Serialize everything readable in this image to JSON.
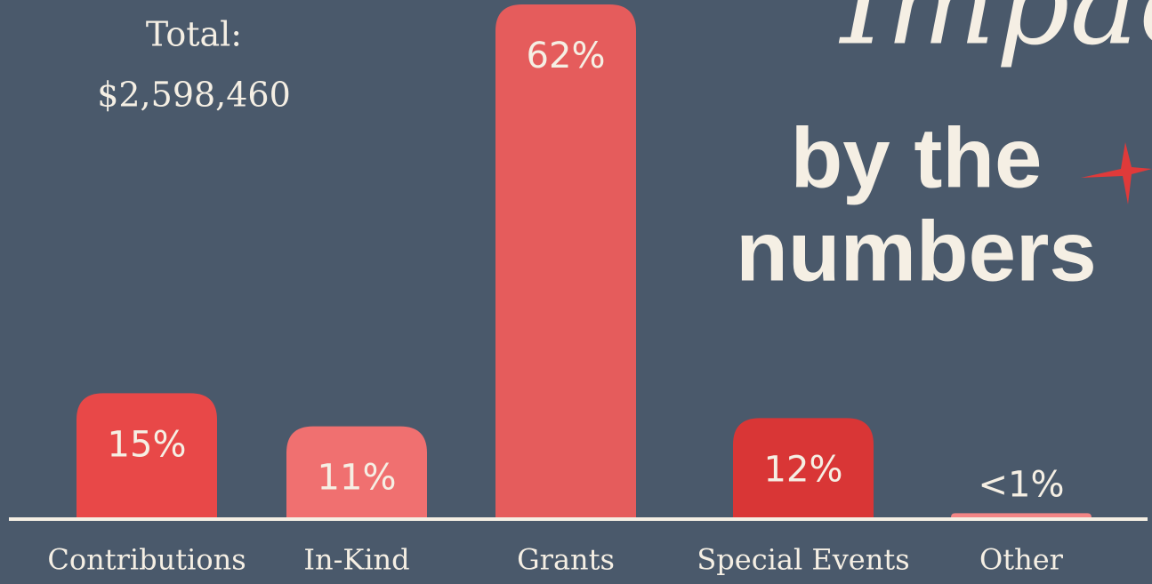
{
  "chart_data": {
    "type": "bar",
    "title": [
      "Impact",
      "by the",
      "numbers"
    ],
    "annotations": [
      "Total:",
      "$2,598,460"
    ],
    "categories": [
      "Contributions",
      "In-Kind",
      "Grants",
      "Special Events",
      "Other"
    ],
    "values": [
      15,
      11,
      62,
      12,
      0.5
    ],
    "value_labels": [
      "15%",
      "11%",
      "62%",
      "12%",
      "<1%"
    ],
    "colors": [
      "#e84848",
      "#f07070",
      "#e55c5c",
      "#d93636",
      "#f38585"
    ],
    "ylim": [
      0,
      62
    ]
  }
}
